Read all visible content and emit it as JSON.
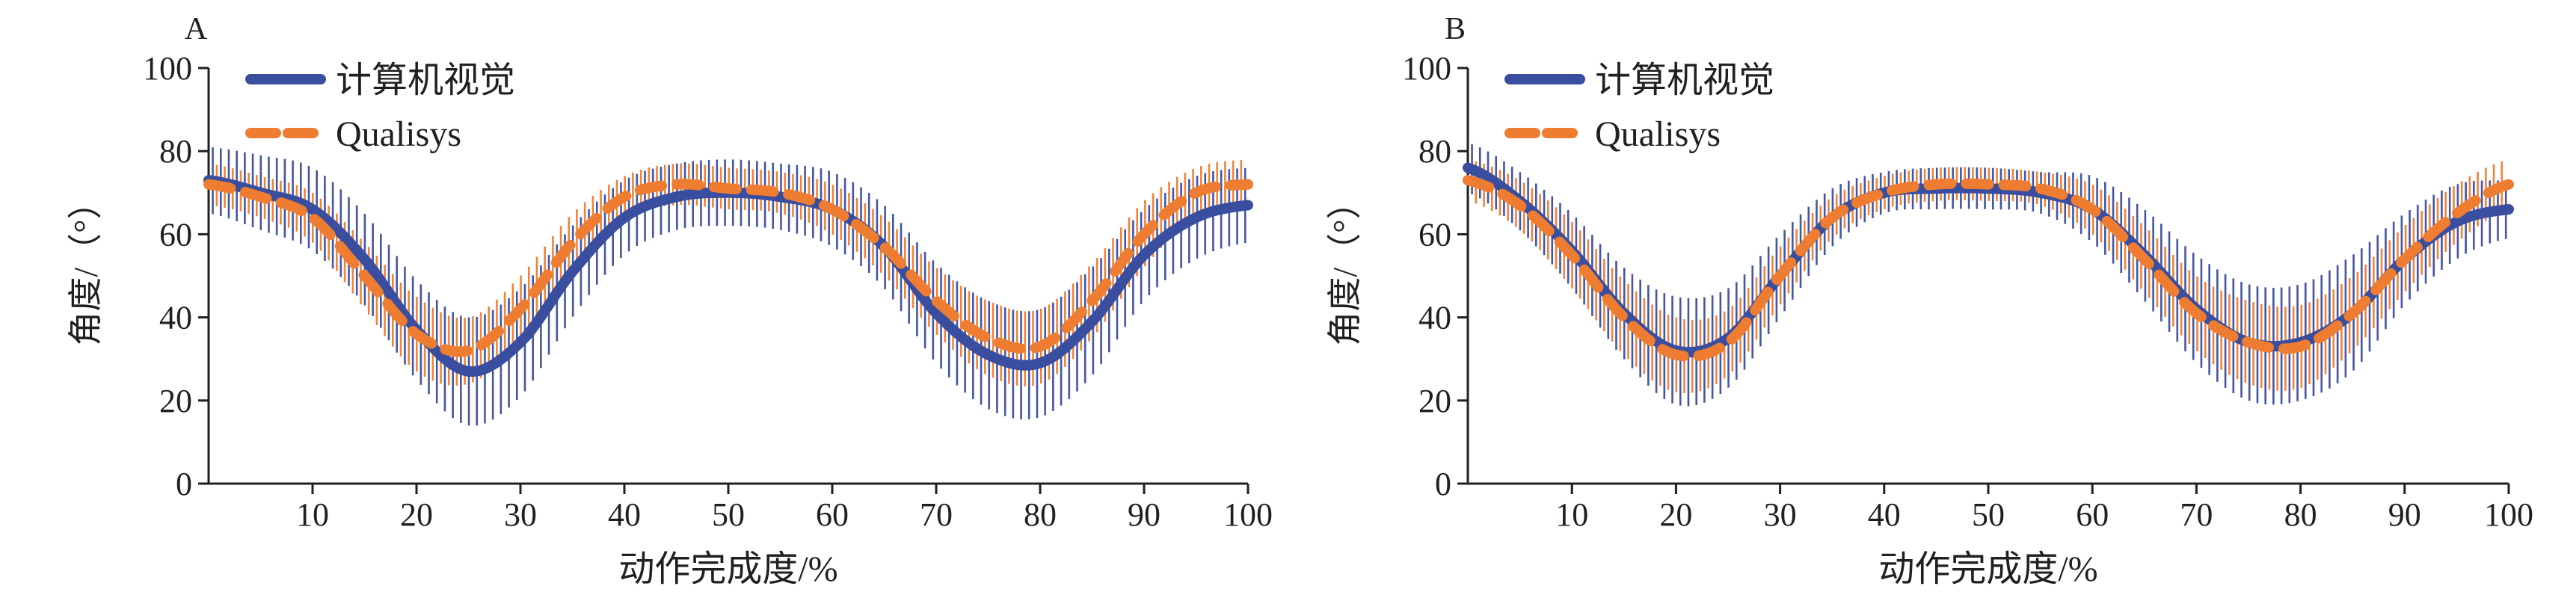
{
  "colors": {
    "cv": "#3a4e9f",
    "qualisys": "#ef7d31",
    "axis": "#231f20"
  },
  "chart_data": [
    {
      "type": "line",
      "panel_label": "A",
      "xlabel": "动作完成度/%",
      "ylabel": "角度/（°）",
      "xlim": [
        0,
        100
      ],
      "ylim": [
        0,
        100
      ],
      "xticks": [
        10,
        20,
        30,
        40,
        50,
        60,
        70,
        80,
        90,
        100
      ],
      "yticks": [
        0,
        20,
        40,
        60,
        80,
        100
      ],
      "legend_position": "top-left",
      "error_bars": true,
      "x": [
        0,
        5,
        10,
        15,
        20,
        25,
        30,
        35,
        40,
        45,
        50,
        55,
        60,
        65,
        70,
        75,
        80,
        85,
        90,
        95,
        100
      ],
      "series": [
        {
          "name": "计算机视觉",
          "color": "#3a4e9f",
          "values": [
            73,
            70,
            66,
            54,
            37,
            27,
            34,
            51,
            64,
            69,
            70,
            69,
            66,
            57,
            41,
            31,
            29,
            39,
            55,
            64,
            67
          ],
          "error": [
            8,
            9,
            10,
            11,
            12,
            13,
            13,
            11,
            9,
            8,
            8,
            8,
            9,
            10,
            12,
            13,
            13,
            13,
            11,
            10,
            9
          ]
        },
        {
          "name": "Qualisys",
          "color": "#ef7d31",
          "values": [
            72,
            69,
            64,
            50,
            36,
            32,
            42,
            58,
            69,
            72,
            71,
            70,
            66,
            57,
            44,
            35,
            33,
            44,
            60,
            70,
            72
          ],
          "error": [
            5,
            5,
            6,
            8,
            9,
            8,
            8,
            7,
            5,
            5,
            5,
            5,
            6,
            7,
            8,
            9,
            9,
            9,
            8,
            6,
            6
          ]
        }
      ]
    },
    {
      "type": "line",
      "panel_label": "B",
      "xlabel": "动作完成度/%",
      "ylabel": "角度/（°）",
      "xlim": [
        0,
        100
      ],
      "ylim": [
        0,
        100
      ],
      "xticks": [
        10,
        20,
        30,
        40,
        50,
        60,
        70,
        80,
        90,
        100
      ],
      "yticks": [
        0,
        20,
        40,
        60,
        80,
        100
      ],
      "legend_position": "top-left",
      "error_bars": true,
      "x": [
        0,
        5,
        10,
        15,
        20,
        25,
        30,
        35,
        40,
        45,
        50,
        55,
        60,
        65,
        70,
        75,
        80,
        85,
        90,
        95,
        100
      ],
      "series": [
        {
          "name": "计算机视觉",
          "color": "#3a4e9f",
          "values": [
            76,
            68,
            56,
            41,
            32,
            35,
            50,
            64,
            70,
            71,
            71,
            70,
            66,
            55,
            42,
            34,
            34,
            41,
            54,
            63,
            66
          ],
          "error": [
            6,
            7,
            9,
            11,
            13,
            12,
            10,
            7,
            5,
            5,
            5,
            5,
            8,
            11,
            13,
            14,
            14,
            14,
            11,
            9,
            7
          ]
        },
        {
          "name": "Qualisys",
          "color": "#ef7d31",
          "values": [
            73,
            67,
            55,
            40,
            31,
            34,
            50,
            64,
            70,
            72,
            72,
            71,
            66,
            54,
            41,
            34,
            33,
            41,
            54,
            65,
            72
          ],
          "error": [
            5,
            6,
            8,
            9,
            9,
            8,
            7,
            5,
            4,
            4,
            4,
            4,
            6,
            8,
            9,
            10,
            10,
            9,
            8,
            7,
            6
          ]
        }
      ]
    }
  ]
}
